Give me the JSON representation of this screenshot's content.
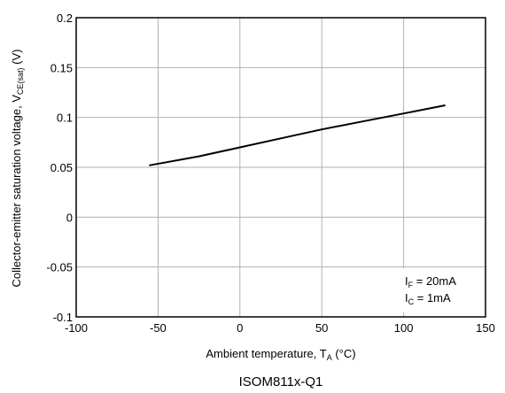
{
  "chart_data": {
    "type": "line",
    "xlabel": "Ambient temperature, T",
    "xlabel_sub": "A",
    "xlabel_unit": " (°C)",
    "ylabel": "Collector-emitter saturation voltage, V",
    "ylabel_sub": "CE(sat)",
    "ylabel_unit": " (V)",
    "xlim": [
      -100,
      150
    ],
    "ylim": [
      -0.1,
      0.2
    ],
    "x_ticks": [
      -100,
      -50,
      0,
      50,
      100,
      150
    ],
    "x_tick_labels": [
      "-100",
      "-50",
      "0",
      "50",
      "100",
      "150"
    ],
    "y_ticks": [
      -0.1,
      -0.05,
      0,
      0.05,
      0.1,
      0.15,
      0.2
    ],
    "y_tick_labels": [
      "-0.1",
      "-0.05",
      "0",
      "0.05",
      "0.1",
      "0.15",
      "0.2"
    ],
    "grid": true,
    "series": [
      {
        "x": [
          -55,
          -25,
          0,
          25,
          50,
          75,
          100,
          125
        ],
        "y": [
          0.052,
          0.061,
          0.07,
          0.079,
          0.088,
          0.096,
          0.104,
          0.112
        ]
      }
    ],
    "legend": {
      "line1": "I",
      "line1_sub": "F",
      "line1_rest": " = 20mA",
      "line2": "I",
      "line2_sub": "C",
      "line2_rest": " = 1mA",
      "placement": "bottom-right"
    },
    "caption": "ISOM811x-Q1"
  }
}
